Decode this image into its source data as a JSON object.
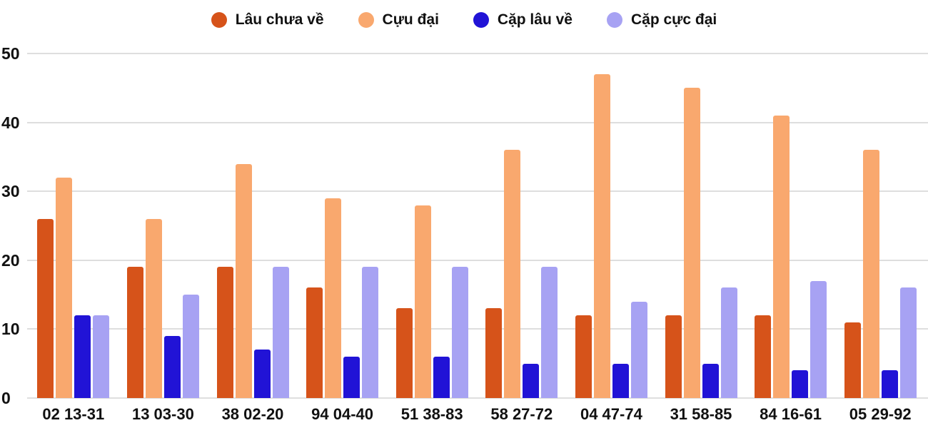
{
  "chart_data": {
    "type": "bar",
    "title": "",
    "xlabel": "",
    "ylabel": "",
    "categories": [
      "02 13-31",
      "13 03-30",
      "38 02-20",
      "94 04-40",
      "51 38-83",
      "58 27-72",
      "04 47-74",
      "31 58-85",
      "84 16-61",
      "05 29-92"
    ],
    "series": [
      {
        "name": "Lâu chưa về",
        "color": "#d6531a",
        "values": [
          26,
          19,
          19,
          16,
          13,
          13,
          12,
          12,
          12,
          11
        ]
      },
      {
        "name": "Cựu đại",
        "color": "#f9a86e",
        "values": [
          32,
          26,
          34,
          29,
          28,
          36,
          47,
          45,
          41,
          36
        ]
      },
      {
        "name": "Cặp lâu về",
        "color": "#2113d6",
        "values": [
          12,
          9,
          7,
          6,
          6,
          5,
          5,
          5,
          4,
          4
        ]
      },
      {
        "name": "Cặp cực đại",
        "color": "#a7a2f3",
        "values": [
          12,
          15,
          19,
          19,
          19,
          19,
          14,
          16,
          17,
          16
        ]
      }
    ],
    "ylim": [
      0,
      50
    ],
    "yticks": [
      0,
      10,
      20,
      30,
      40,
      50
    ],
    "grid": true,
    "legend_position": "top",
    "colors": {
      "background": "#ffffff",
      "gridline": "#dedede",
      "text": "#111111"
    }
  }
}
